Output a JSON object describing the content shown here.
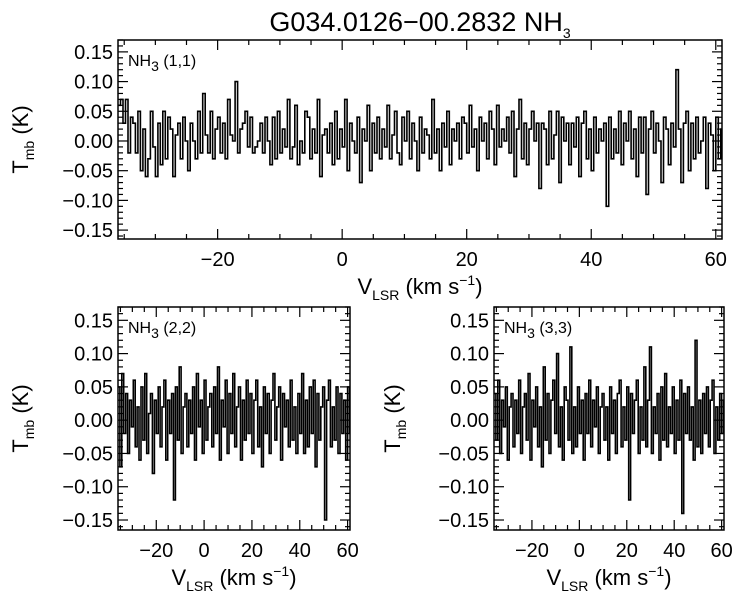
{
  "title": {
    "name": "G034.0126−00.2832 NH",
    "sub": "3"
  },
  "chart_data": [
    {
      "type": "line",
      "panel": "top",
      "label": {
        "pre": "NH",
        "sub": "3",
        "post": " (1,1)"
      },
      "xlabel": {
        "pre": "V",
        "sub": "LSR",
        "post": " (km s",
        "sup": "−1",
        "end": ")"
      },
      "ylabel": {
        "pre": "T",
        "sub": "mb",
        "post": " (K)"
      },
      "xlim": [
        -36,
        61
      ],
      "ylim": [
        -0.165,
        0.17
      ],
      "x_ticks": [
        -20,
        0,
        20,
        40,
        60
      ],
      "x_tick_labels": [
        "−20",
        "0",
        "20",
        "40",
        "60"
      ],
      "y_ticks": [
        0.15,
        0.1,
        0.05,
        0.0,
        -0.05,
        -0.1,
        -0.15
      ],
      "y_tick_labels": [
        "0.15",
        "0.10",
        "0.05",
        "0.00",
        "−0.05",
        "−0.10",
        "−0.15"
      ],
      "series": [
        {
          "name": "NH3 (1,1)",
          "x_start": -36,
          "x_step": 0.4,
          "values": [
            0.06,
            0.07,
            0.03,
            0.07,
            -0.02,
            0.04,
            0.03,
            -0.02,
            0.05,
            -0.05,
            0.02,
            -0.06,
            -0.03,
            0.05,
            -0.01,
            -0.06,
            0.03,
            -0.04,
            0.05,
            -0.03,
            0.04,
            0.02,
            -0.06,
            0.01,
            0.03,
            -0.03,
            0.04,
            0.0,
            -0.05,
            0.03,
            0.0,
            -0.03,
            0.05,
            -0.02,
            0.08,
            0.01,
            -0.02,
            0.05,
            -0.03,
            0.02,
            0.04,
            -0.02,
            0.03,
            -0.03,
            0.07,
            0.01,
            0.0,
            0.1,
            -0.02,
            0.02,
            0.03,
            0.05,
            -0.01,
            0.04,
            -0.02,
            -0.01,
            0.0,
            0.03,
            -0.02,
            0.04,
            0.0,
            -0.04,
            0.04,
            -0.03,
            0.05,
            -0.02,
            0.02,
            -0.01,
            0.07,
            -0.03,
            -0.01,
            0.06,
            -0.04,
            0.0,
            -0.02,
            0.05,
            0.04,
            -0.03,
            0.02,
            -0.02,
            0.07,
            -0.06,
            0.01,
            0.02,
            -0.02,
            0.03,
            -0.04,
            0.05,
            -0.03,
            0.02,
            -0.01,
            0.07,
            -0.05,
            0.03,
            0.0,
            -0.02,
            0.04,
            -0.07,
            0.02,
            0.0,
            0.06,
            -0.05,
            0.03,
            -0.02,
            0.04,
            -0.03,
            0.02,
            -0.01,
            0.06,
            -0.03,
            0.01,
            0.05,
            -0.02,
            -0.04,
            0.04,
            0.0,
            0.05,
            -0.03,
            0.03,
            0.0,
            -0.05,
            0.04,
            -0.02,
            0.02,
            0.01,
            -0.03,
            0.07,
            -0.02,
            0.02,
            -0.05,
            0.03,
            -0.01,
            0.05,
            -0.04,
            0.02,
            0.0,
            0.03,
            -0.03,
            0.04,
            0.03,
            -0.02,
            0.06,
            -0.01,
            0.02,
            -0.05,
            0.04,
            0.0,
            0.03,
            -0.03,
            0.05,
            0.02,
            -0.04,
            0.06,
            -0.01,
            0.02,
            0.0,
            0.04,
            -0.02,
            0.05,
            -0.06,
            0.02,
            0.07,
            -0.03,
            0.03,
            -0.04,
            0.02,
            0.05,
            0.0,
            0.03,
            -0.08,
            0.03,
            0.02,
            -0.04,
            0.05,
            -0.03,
            0.01,
            0.05,
            -0.07,
            0.04,
            0.0,
            0.03,
            -0.04,
            0.03,
            -0.01,
            0.04,
            -0.06,
            0.03,
            0.05,
            -0.03,
            0.02,
            -0.05,
            0.04,
            -0.02,
            0.02,
            0.0,
            0.03,
            -0.11,
            0.04,
            -0.03,
            0.02,
            -0.02,
            0.05,
            -0.04,
            0.03,
            0.0,
            0.05,
            -0.03,
            0.02,
            -0.06,
            0.04,
            -0.02,
            0.04,
            -0.09,
            0.02,
            0.05,
            -0.02,
            0.03,
            0.0,
            -0.07,
            0.04,
            0.02,
            -0.04,
            0.03,
            -0.01,
            0.12,
            0.02,
            -0.07,
            0.03,
            0.05,
            -0.05,
            0.03,
            -0.03,
            0.04,
            -0.02,
            0.0,
            0.04,
            -0.08,
            0.03,
            0.01,
            -0.05,
            0.04,
            -0.03,
            0.02
          ]
        }
      ]
    },
    {
      "type": "line",
      "panel": "bottom-left",
      "label": {
        "pre": "NH",
        "sub": "3",
        "post": " (2,2)"
      },
      "xlabel": {
        "pre": "V",
        "sub": "LSR",
        "post": " (km s",
        "sup": "−1",
        "end": ")"
      },
      "ylabel": {
        "pre": "T",
        "sub": "mb",
        "post": " (K)"
      },
      "xlim": [
        -36,
        61
      ],
      "ylim": [
        -0.165,
        0.17
      ],
      "x_ticks": [
        -20,
        0,
        20,
        40,
        60
      ],
      "x_tick_labels": [
        "−20",
        "0",
        "20",
        "40",
        "60"
      ],
      "y_ticks": [
        0.15,
        0.1,
        0.05,
        0.0,
        -0.05,
        -0.1,
        -0.15
      ],
      "y_tick_labels": [
        "0.15",
        "0.10",
        "0.05",
        "0.00",
        "−0.05",
        "−0.10",
        "−0.15"
      ],
      "series": [
        {
          "name": "NH3 (2,2)",
          "x_start": -36,
          "x_step": 0.8,
          "values": [
            0.05,
            -0.07,
            0.07,
            -0.02,
            0.04,
            -0.05,
            0.03,
            -0.01,
            0.06,
            -0.04,
            0.02,
            -0.06,
            0.05,
            -0.03,
            0.07,
            -0.05,
            0.01,
            0.04,
            -0.08,
            0.03,
            -0.02,
            0.05,
            -0.04,
            0.02,
            0.06,
            -0.06,
            0.03,
            -0.02,
            0.04,
            -0.12,
            0.05,
            -0.03,
            0.08,
            -0.05,
            0.02,
            0.04,
            -0.04,
            0.03,
            -0.02,
            0.05,
            -0.06,
            0.07,
            -0.01,
            0.03,
            -0.05,
            0.06,
            -0.03,
            0.02,
            0.04,
            -0.04,
            0.05,
            -0.02,
            0.08,
            -0.06,
            0.03,
            -0.01,
            0.06,
            -0.05,
            0.04,
            -0.02,
            0.07,
            -0.04,
            0.02,
            0.05,
            -0.06,
            0.03,
            -0.03,
            0.06,
            -0.02,
            0.04,
            -0.05,
            0.03,
            0.06,
            -0.04,
            0.02,
            -0.07,
            0.05,
            -0.02,
            0.04,
            -0.05,
            0.03,
            0.07,
            -0.03,
            0.02,
            0.05,
            -0.06,
            0.04,
            -0.01,
            0.03,
            -0.04,
            0.06,
            -0.03,
            0.02,
            -0.05,
            0.04,
            -0.02,
            0.07,
            -0.05,
            0.03,
            -0.04,
            0.05,
            -0.02,
            0.06,
            -0.07,
            0.04,
            -0.03,
            0.02,
            0.05,
            -0.15,
            0.03,
            0.06,
            -0.04,
            0.02,
            -0.03,
            0.05,
            -0.05,
            0.04,
            -0.02,
            0.03,
            -0.06,
            0.05,
            -0.02
          ]
        }
      ]
    },
    {
      "type": "line",
      "panel": "bottom-right",
      "label": {
        "pre": "NH",
        "sub": "3",
        "post": " (3,3)"
      },
      "xlabel": {
        "pre": "V",
        "sub": "LSR",
        "post": " (km s",
        "sup": "−1",
        "end": ")"
      },
      "ylabel": {
        "pre": "T",
        "sub": "mb",
        "post": " (K)"
      },
      "xlim": [
        -36,
        61
      ],
      "ylim": [
        -0.165,
        0.17
      ],
      "x_ticks": [
        -20,
        0,
        20,
        40,
        60
      ],
      "x_tick_labels": [
        "−20",
        "0",
        "20",
        "40",
        "60"
      ],
      "y_ticks": [
        0.15,
        0.1,
        0.05,
        0.0,
        -0.05,
        -0.1,
        -0.15
      ],
      "y_tick_labels": [
        "0.15",
        "0.10",
        "0.05",
        "0.00",
        "−0.05",
        "−0.10",
        "−0.15"
      ],
      "series": [
        {
          "name": "NH3 (3,3)",
          "x_start": -36,
          "x_step": 0.8,
          "values": [
            0.04,
            -0.03,
            0.06,
            -0.05,
            0.03,
            -0.01,
            0.05,
            -0.06,
            0.02,
            0.04,
            -0.04,
            0.03,
            -0.02,
            0.06,
            -0.05,
            0.02,
            0.04,
            -0.03,
            0.07,
            -0.06,
            0.03,
            -0.01,
            0.05,
            -0.04,
            0.02,
            -0.07,
            0.08,
            -0.03,
            0.04,
            -0.05,
            0.03,
            0.06,
            -0.02,
            0.1,
            -0.04,
            0.02,
            -0.06,
            0.05,
            0.03,
            -0.03,
            0.11,
            -0.05,
            0.02,
            -0.04,
            0.05,
            -0.02,
            0.03,
            -0.06,
            0.04,
            -0.02,
            0.06,
            -0.04,
            0.03,
            -0.01,
            0.05,
            -0.05,
            0.02,
            0.04,
            -0.03,
            0.02,
            -0.06,
            0.05,
            -0.02,
            0.03,
            -0.05,
            0.04,
            0.06,
            -0.04,
            0.02,
            -0.03,
            0.05,
            -0.12,
            0.04,
            -0.02,
            0.03,
            0.06,
            -0.05,
            0.02,
            -0.03,
            0.08,
            -0.04,
            0.03,
            0.11,
            -0.05,
            0.02,
            -0.02,
            0.04,
            -0.06,
            0.05,
            -0.03,
            0.07,
            -0.04,
            0.02,
            -0.02,
            0.05,
            -0.05,
            0.03,
            -0.03,
            0.06,
            -0.14,
            0.04,
            -0.02,
            0.05,
            -0.03,
            0.02,
            -0.06,
            0.12,
            -0.04,
            0.03,
            -0.05,
            0.04,
            -0.02,
            0.05,
            -0.04,
            0.03,
            0.06,
            -0.05,
            0.02,
            -0.03,
            0.04,
            -0.02,
            0.03
          ]
        }
      ]
    }
  ]
}
